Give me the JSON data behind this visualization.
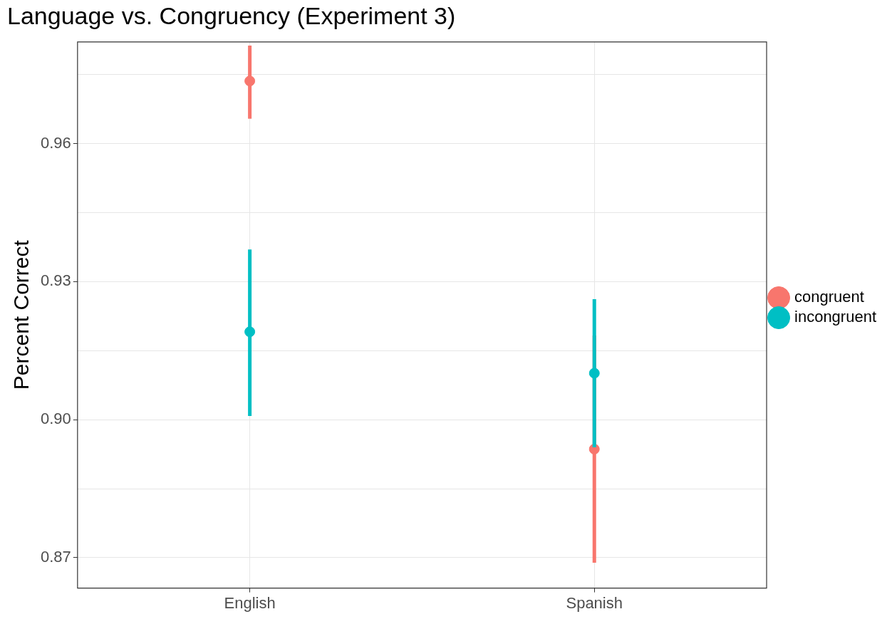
{
  "chart_data": {
    "type": "scatter",
    "title": "Language vs. Congruency (Experiment 3)",
    "ylabel": "Percent Correct",
    "categories": [
      "English",
      "Spanish"
    ],
    "series": [
      {
        "name": "congruent",
        "color": "#f8766d",
        "values": [
          0.9736,
          0.8936
        ],
        "errors": [
          [
            0.9654,
            0.9813
          ],
          [
            0.8689,
            0.9183
          ]
        ]
      },
      {
        "name": "incongruent",
        "color": "#00bfc4",
        "values": [
          0.9191,
          0.9101
        ],
        "errors": [
          [
            0.9008,
            0.937
          ],
          [
            0.894,
            0.9262
          ]
        ]
      }
    ],
    "ylim": [
      0.8634,
      0.9821
    ],
    "yticks": [
      {
        "value": 0.87,
        "label": "0.87"
      },
      {
        "value": 0.885,
        "label": null
      },
      {
        "value": 0.9,
        "label": "0.90"
      },
      {
        "value": 0.915,
        "label": null
      },
      {
        "value": 0.93,
        "label": "0.93"
      },
      {
        "value": 0.945,
        "label": null
      },
      {
        "value": 0.96,
        "label": "0.96"
      },
      {
        "value": 0.975,
        "label": null
      }
    ],
    "grid": true,
    "legend": "right",
    "marker": "circle"
  }
}
